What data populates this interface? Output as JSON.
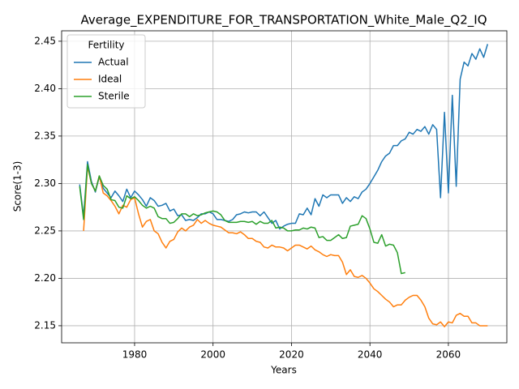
{
  "chart_data": {
    "type": "line",
    "title": "Average_EXPENDITURE_FOR_TRANSPORTATION_White_Male_Q2_IQ",
    "xlabel": "Years",
    "ylabel": "Score(1-3)",
    "legend_title": "Fertility",
    "legend": "upper left",
    "grid": true,
    "xlim": [
      1961.4,
      2074.9
    ],
    "ylim": [
      2.132,
      2.461
    ],
    "xticks": [
      1980,
      2000,
      2020,
      2040,
      2060
    ],
    "yticks": [
      2.15,
      {
        "value": 2.2,
        "label": "2.20"
      },
      2.25,
      {
        "value": 2.3,
        "label": "2.30"
      },
      2.35,
      {
        "value": 2.4,
        "label": "2.40"
      },
      2.45
    ],
    "x": [
      1966,
      1967,
      1968,
      1969,
      1970,
      1971,
      1972,
      1973,
      1974,
      1975,
      1976,
      1977,
      1978,
      1979,
      1980,
      1981,
      1982,
      1983,
      1984,
      1985,
      1986,
      1987,
      1988,
      1989,
      1990,
      1991,
      1992,
      1993,
      1994,
      1995,
      1996,
      1997,
      1998,
      1999,
      2000,
      2001,
      2002,
      2003,
      2004,
      2005,
      2006,
      2007,
      2008,
      2009,
      2010,
      2011,
      2012,
      2013,
      2014,
      2015,
      2016,
      2017,
      2018,
      2019,
      2020,
      2021,
      2022,
      2023,
      2024,
      2025,
      2026,
      2027,
      2028,
      2029,
      2030,
      2031,
      2032,
      2033,
      2034,
      2035,
      2036,
      2037,
      2038,
      2039,
      2040,
      2041,
      2042,
      2043,
      2044,
      2045,
      2046,
      2047,
      2048,
      2049,
      2050,
      2051,
      2052,
      2053,
      2054,
      2055,
      2056,
      2057,
      2058,
      2059,
      2060,
      2061,
      2062,
      2063,
      2064,
      2065,
      2066,
      2067,
      2068,
      2069,
      2070
    ],
    "series": [
      {
        "name": "Actual",
        "color": "#1f77b4",
        "values": [
          2.299,
          2.265,
          2.323,
          2.302,
          2.291,
          2.307,
          2.295,
          2.29,
          2.285,
          2.292,
          2.287,
          2.281,
          2.294,
          2.285,
          2.292,
          2.288,
          2.283,
          2.276,
          2.285,
          2.282,
          2.276,
          2.277,
          2.279,
          2.271,
          2.273,
          2.266,
          2.267,
          2.261,
          2.262,
          2.261,
          2.264,
          2.268,
          2.268,
          2.27,
          2.268,
          2.262,
          2.262,
          2.261,
          2.26,
          2.262,
          2.267,
          2.268,
          2.27,
          2.269,
          2.27,
          2.27,
          2.266,
          2.27,
          2.264,
          2.258,
          2.261,
          2.252,
          2.255,
          2.257,
          2.258,
          2.258,
          2.268,
          2.267,
          2.274,
          2.267,
          2.284,
          2.276,
          2.288,
          2.285,
          2.288,
          2.288,
          2.288,
          2.279,
          2.285,
          2.281,
          2.286,
          2.284,
          2.291,
          2.294,
          2.3,
          2.307,
          2.314,
          2.323,
          2.329,
          2.332,
          2.34,
          2.34,
          2.345,
          2.347,
          2.354,
          2.352,
          2.357,
          2.355,
          2.36,
          2.352,
          2.362,
          2.357,
          2.285,
          2.375,
          2.29,
          2.393,
          2.297,
          2.41,
          2.428,
          2.424,
          2.437,
          2.431,
          2.442,
          2.433,
          2.447
        ]
      },
      {
        "name": "Ideal",
        "color": "#ff7f0e",
        "values": [
          null,
          2.25,
          2.318,
          2.3,
          2.292,
          2.308,
          2.29,
          2.287,
          2.282,
          2.276,
          2.268,
          2.277,
          2.275,
          2.283,
          2.285,
          2.268,
          2.254,
          2.26,
          2.262,
          2.25,
          2.247,
          2.238,
          2.232,
          2.239,
          2.241,
          2.249,
          2.253,
          2.25,
          2.254,
          2.256,
          2.262,
          2.258,
          2.261,
          2.258,
          2.256,
          2.255,
          2.254,
          2.251,
          2.248,
          2.248,
          2.247,
          2.249,
          2.246,
          2.242,
          2.242,
          2.239,
          2.238,
          2.233,
          2.232,
          2.235,
          2.233,
          2.233,
          2.232,
          2.229,
          2.232,
          2.235,
          2.235,
          2.233,
          2.231,
          2.234,
          2.23,
          2.228,
          2.225,
          2.223,
          2.225,
          2.224,
          2.224,
          2.217,
          2.204,
          2.209,
          2.202,
          2.201,
          2.203,
          2.2,
          2.195,
          2.189,
          2.186,
          2.182,
          2.178,
          2.175,
          2.17,
          2.172,
          2.172,
          2.177,
          2.18,
          2.182,
          2.182,
          2.177,
          2.17,
          2.158,
          2.152,
          2.151,
          2.154,
          2.149,
          2.154,
          2.153,
          2.161,
          2.163,
          2.16,
          2.16,
          2.153,
          2.153,
          2.15,
          2.15,
          2.15
        ]
      },
      {
        "name": "Sterile",
        "color": "#2ca02c",
        "values": [
          2.297,
          2.262,
          2.32,
          2.3,
          2.292,
          2.308,
          2.298,
          2.294,
          2.283,
          2.282,
          2.275,
          2.274,
          2.287,
          2.284,
          2.286,
          2.282,
          2.277,
          2.274,
          2.276,
          2.274,
          2.265,
          2.263,
          2.263,
          2.258,
          2.259,
          2.263,
          2.268,
          2.268,
          2.265,
          2.268,
          2.266,
          2.267,
          2.269,
          2.27,
          2.271,
          2.27,
          2.267,
          2.261,
          2.259,
          2.259,
          2.259,
          2.26,
          2.26,
          2.259,
          2.26,
          2.257,
          2.26,
          2.258,
          2.258,
          2.261,
          2.253,
          2.254,
          2.253,
          2.25,
          2.25,
          2.251,
          2.251,
          2.253,
          2.252,
          2.254,
          2.253,
          2.243,
          2.244,
          2.24,
          2.24,
          2.243,
          2.246,
          2.242,
          2.243,
          2.255,
          2.256,
          2.257,
          2.266,
          2.263,
          2.252,
          2.238,
          2.237,
          2.246,
          2.234,
          2.236,
          2.235,
          2.227,
          2.205,
          2.206,
          null,
          null,
          null,
          null,
          null,
          null,
          null,
          null,
          null,
          null,
          null,
          null,
          null,
          null,
          null,
          null,
          null,
          null,
          null,
          null,
          null
        ]
      }
    ]
  }
}
